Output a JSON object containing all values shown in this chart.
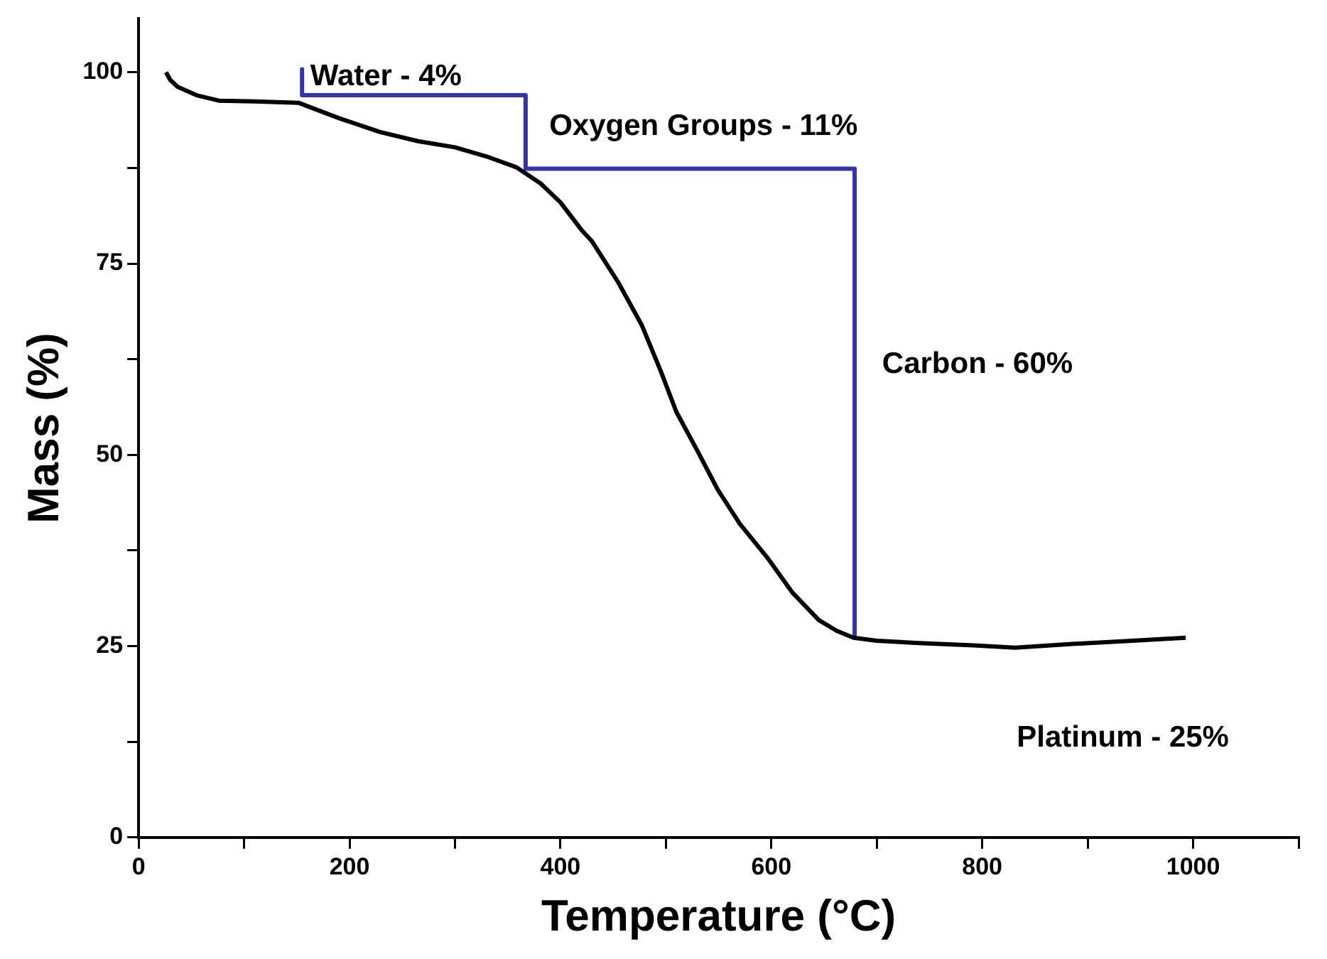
{
  "chart_data": {
    "type": "line",
    "xlabel": "Temperature (°C)",
    "ylabel": "Mass (%)",
    "xlim": [
      0,
      1100
    ],
    "ylim": [
      0,
      107
    ],
    "xticks": [
      0,
      {
        "value": 100,
        "label": null
      },
      200,
      {
        "value": 300,
        "label": null
      },
      400,
      {
        "value": 500,
        "label": null
      },
      600,
      {
        "value": 700,
        "label": null
      },
      800,
      {
        "value": 900,
        "label": null
      },
      1000,
      {
        "value": 1100,
        "label": null
      }
    ],
    "yticks": [
      0,
      {
        "value": 12.5,
        "label": null
      },
      25,
      {
        "value": 37.5,
        "label": null
      },
      50,
      {
        "value": 62.5,
        "label": null
      },
      75,
      {
        "value": 87.5,
        "label": null
      },
      100
    ],
    "grid": false,
    "legend": false,
    "series": [
      {
        "color": "#000000",
        "x": [
          26,
          30,
          37,
          55,
          76,
          110,
          152,
          190,
          229,
          265,
          300,
          330,
          358,
          381,
          400,
          420,
          430,
          455,
          477,
          495,
          510,
          530,
          549,
          570,
          596,
          620,
          645,
          662,
          678,
          700,
          740,
          792,
          831,
          888,
          930,
          993
        ],
        "values": [
          100,
          99,
          98.1,
          97,
          96.3,
          96.2,
          96,
          94,
          92.2,
          91,
          90.2,
          89,
          87.6,
          85.5,
          83,
          79.4,
          77.9,
          72.5,
          67,
          61,
          55.6,
          50.5,
          45.5,
          41,
          36.6,
          32,
          28.4,
          27,
          26.1,
          25.7,
          25.4,
          25.1,
          24.8,
          25.3,
          25.6,
          26.1
        ]
      },
      {
        "color": "#3333aa",
        "x": [
          155,
          155,
          367,
          367,
          679,
          679
        ],
        "values": [
          100.4,
          97,
          97,
          87.4,
          87.4,
          26.1
        ]
      }
    ],
    "annotations": [
      "Water - 4%",
      "Oxygen Groups - 11%",
      "Carbon - 60%",
      "Platinum - 25%"
    ]
  }
}
